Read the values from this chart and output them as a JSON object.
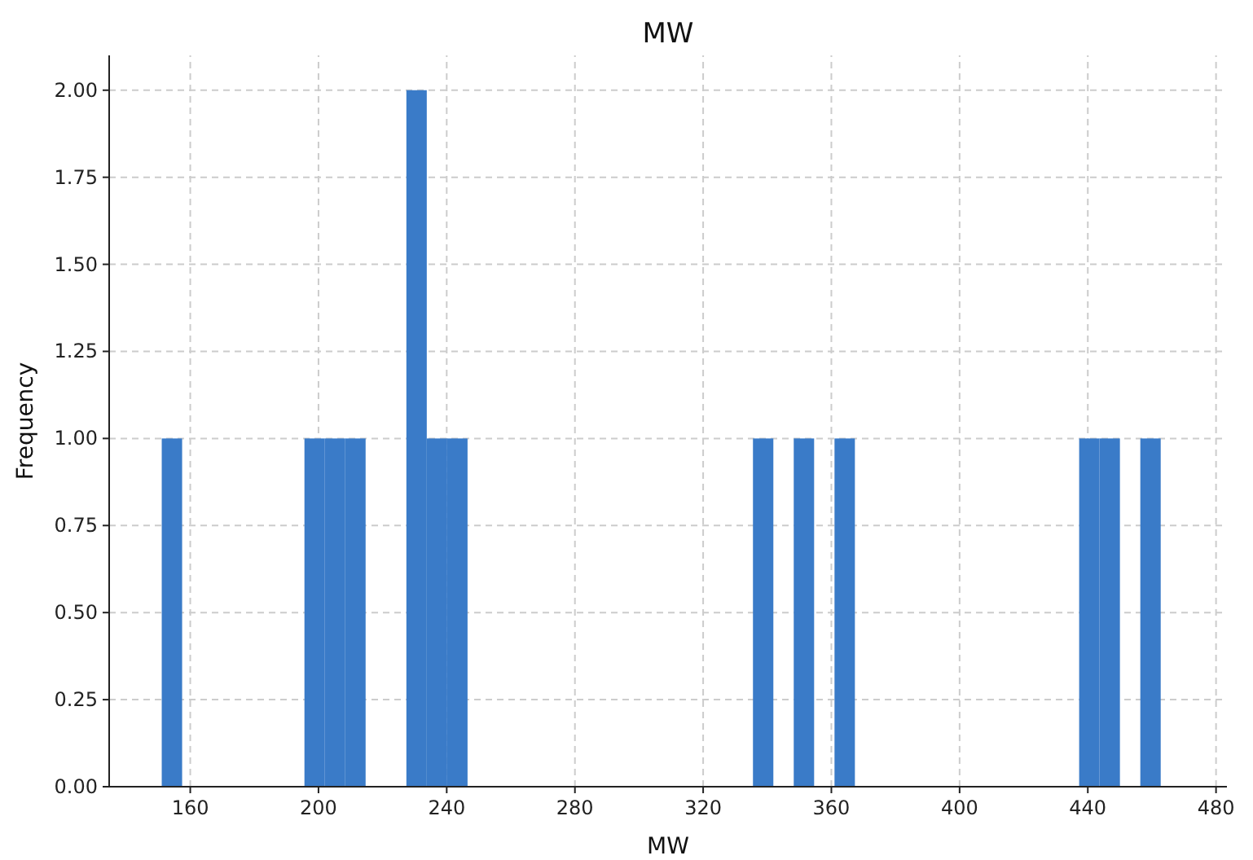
{
  "chart_data": {
    "type": "histogram",
    "title": "MW",
    "xlabel": "MW",
    "ylabel": "Frequency",
    "bins": [
      151.1,
      157.46,
      163.82,
      170.18,
      176.54,
      182.9,
      189.26,
      195.62,
      201.98,
      208.34,
      214.7,
      221.06,
      227.42,
      233.78,
      240.14,
      246.5,
      252.86,
      259.22,
      265.58,
      271.94,
      278.3,
      284.66,
      291.02,
      297.38,
      303.74,
      310.1,
      316.46,
      322.82,
      329.18,
      335.54,
      341.9,
      348.26,
      354.62,
      360.98,
      367.34,
      373.7,
      380.06,
      386.42,
      392.78,
      399.14,
      405.5,
      411.86,
      418.22,
      424.58,
      430.94,
      437.3,
      443.66,
      450.02,
      456.38,
      462.74
    ],
    "values": [
      1,
      0,
      0,
      0,
      0,
      0,
      0,
      1,
      1,
      1,
      0,
      0,
      2,
      1,
      1,
      0,
      0,
      0,
      0,
      0,
      0,
      0,
      0,
      0,
      0,
      0,
      0,
      0,
      0,
      1,
      0,
      1,
      0,
      1,
      0,
      0,
      0,
      0,
      0,
      0,
      0,
      0,
      0,
      0,
      0,
      1,
      1,
      0,
      1
    ],
    "color": "#3a7bc8",
    "xlim": [
      134.7,
      483.4
    ],
    "xticks": [
      160,
      200,
      240,
      280,
      320,
      360,
      400,
      440,
      480
    ],
    "ylim": [
      0,
      2.1
    ],
    "yticks": [
      {
        "value": 0,
        "label": "0.00"
      },
      {
        "value": 0.25,
        "label": "0.25"
      },
      {
        "value": 0.5,
        "label": "0.50"
      },
      {
        "value": 0.75,
        "label": "0.75"
      },
      {
        "value": 1,
        "label": "1.00"
      },
      {
        "value": 1.25,
        "label": "1.25"
      },
      {
        "value": 1.5,
        "label": "1.50"
      },
      {
        "value": 1.75,
        "label": "1.75"
      },
      {
        "value": 2,
        "label": "2.00"
      }
    ],
    "grid": true,
    "line_style": "dashed"
  }
}
